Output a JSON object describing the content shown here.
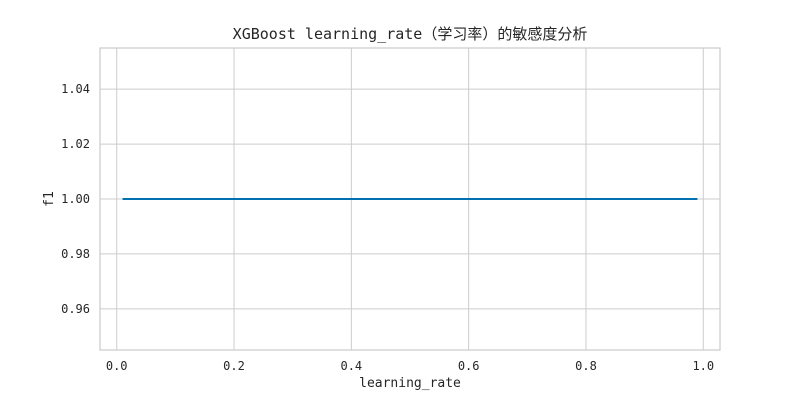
{
  "chart_data": {
    "type": "line",
    "title": "XGBoost learning_rate（学习率）的敏感度分析",
    "xlabel": "learning_rate",
    "ylabel": "f1",
    "xlim": [
      -0.0285,
      1.0285
    ],
    "ylim": [
      0.945,
      1.055
    ],
    "x_ticks": [
      0.0,
      0.2,
      0.4,
      0.6,
      0.8,
      1.0
    ],
    "x_tick_labels": [
      "0.0",
      "0.2",
      "0.4",
      "0.6",
      "0.8",
      "1.0"
    ],
    "y_ticks": [
      0.96,
      0.98,
      1.0,
      1.02,
      1.04
    ],
    "y_tick_labels": [
      "0.96",
      "0.98",
      "1.00",
      "1.02",
      "1.04"
    ],
    "grid": true,
    "series": [
      {
        "color": "#0072b2",
        "x": [
          0.01,
          0.99
        ],
        "y": [
          1.0,
          1.0
        ]
      }
    ],
    "colors": {
      "grid": "#cccccc",
      "axes_frame": "#cccccc",
      "background": "#ffffff"
    }
  }
}
